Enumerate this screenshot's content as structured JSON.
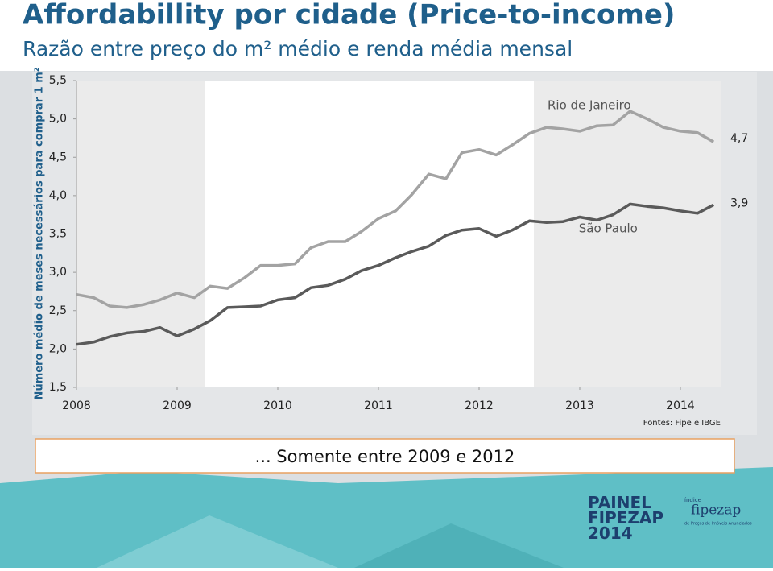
{
  "chart_data": {
    "type": "line",
    "title": "Affordabillity por cidade (Price-to-income)",
    "subtitle": "Razão entre preço do m² médio e renda média mensal",
    "y_label": "Número médio de meses necessários para comprar 1 m²",
    "source": "Fontes: Fipe e IBGE",
    "x": [
      2008.0,
      2008.17,
      2008.33,
      2008.5,
      2008.67,
      2008.83,
      2009.0,
      2009.17,
      2009.33,
      2009.5,
      2009.67,
      2009.83,
      2010.0,
      2010.17,
      2010.33,
      2010.5,
      2010.67,
      2010.83,
      2011.0,
      2011.17,
      2011.33,
      2011.5,
      2011.67,
      2011.83,
      2012.0,
      2012.17,
      2012.33,
      2012.5,
      2012.67,
      2012.83,
      2013.0,
      2013.17,
      2013.33,
      2013.5,
      2013.67,
      2013.83,
      2014.0,
      2014.17,
      2014.33
    ],
    "series": [
      {
        "name": "Rio de Janeiro",
        "color": "#a3a3a3",
        "end_label": "4,7",
        "values": [
          2.71,
          2.67,
          2.56,
          2.54,
          2.58,
          2.64,
          2.73,
          2.67,
          2.82,
          2.79,
          2.93,
          3.09,
          3.09,
          3.11,
          3.32,
          3.4,
          3.4,
          3.53,
          3.7,
          3.8,
          4.01,
          4.28,
          4.22,
          4.56,
          4.6,
          4.53,
          4.66,
          4.81,
          4.89,
          4.87,
          4.84,
          4.91,
          4.92,
          5.1,
          5.0,
          4.89,
          4.84,
          4.82,
          4.7
        ]
      },
      {
        "name": "São Paulo",
        "color": "#5a5a5a",
        "end_label": "3,9",
        "values": [
          2.06,
          2.09,
          2.16,
          2.21,
          2.23,
          2.28,
          2.17,
          2.26,
          2.37,
          2.54,
          2.55,
          2.56,
          2.64,
          2.67,
          2.8,
          2.83,
          2.91,
          3.02,
          3.09,
          3.19,
          3.27,
          3.34,
          3.48,
          3.55,
          3.57,
          3.47,
          3.55,
          3.67,
          3.65,
          3.66,
          3.72,
          3.68,
          3.75,
          3.89,
          3.86,
          3.84,
          3.8,
          3.77,
          3.88
        ]
      }
    ],
    "xlim": [
      2008,
      2014.4
    ],
    "xticks": [
      2008,
      2009,
      2010,
      2011,
      2012,
      2013,
      2014
    ],
    "ylim": [
      1.5,
      5.5
    ],
    "yticks": [
      {
        "value": 1.5,
        "label": "1,5"
      },
      {
        "value": 2.0,
        "label": "2,0"
      },
      {
        "value": 2.5,
        "label": "2,5"
      },
      {
        "value": 3.0,
        "label": "3,0"
      },
      {
        "value": 3.5,
        "label": "3,5"
      },
      {
        "value": 4.0,
        "label": "4,0"
      },
      {
        "value": 4.5,
        "label": "4,5"
      },
      {
        "value": 5.0,
        "label": "5,0"
      },
      {
        "value": 5.5,
        "label": "5,5"
      }
    ]
  },
  "callout": "... Somente entre 2009 e 2012",
  "logo": {
    "title": "PAINEL FIPEZAP 2014",
    "index": "índice",
    "brand": "fipezap",
    "tagline": "de Preços de Imóveis Anunciados"
  }
}
